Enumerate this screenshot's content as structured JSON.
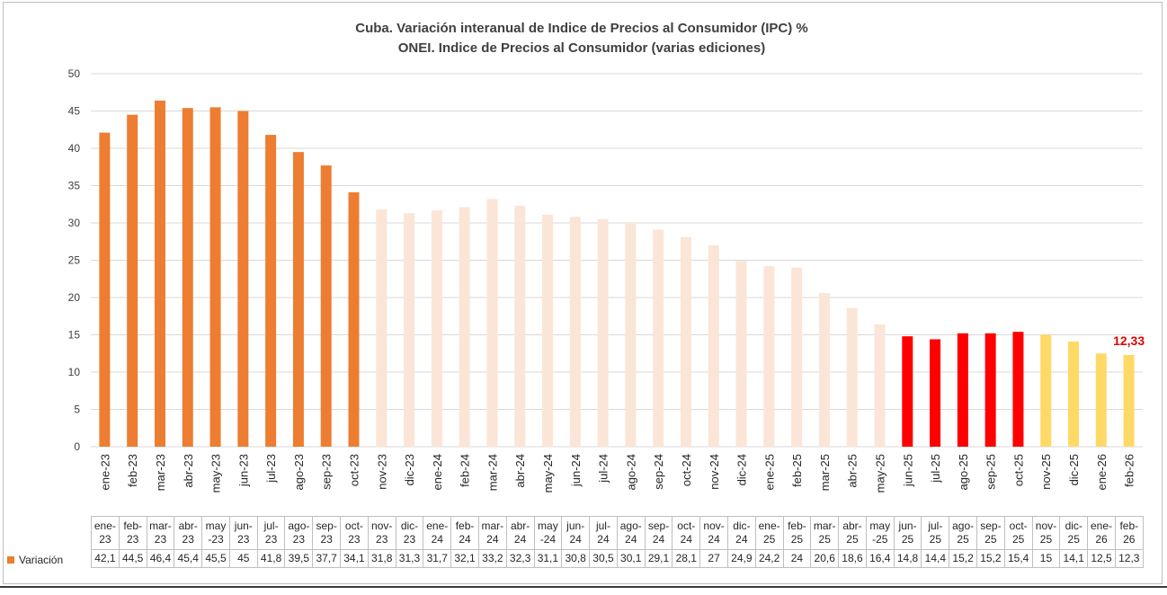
{
  "chart_data": {
    "type": "bar",
    "title": "Cuba. Variación interanual de Indice de Precios al Consumidor (IPC) %",
    "subtitle": "ONEI. Indice de Precios al Consumidor (varias ediciones)",
    "xlabel": "",
    "ylabel": "",
    "ylim": [
      0,
      50
    ],
    "yticks": [
      0,
      5,
      10,
      15,
      20,
      25,
      30,
      35,
      40,
      45,
      50
    ],
    "grid": true,
    "series_name": "Variación",
    "categories": [
      "ene-23",
      "feb-23",
      "mar-23",
      "abr-23",
      "may-23",
      "jun-23",
      "jul-23",
      "ago-23",
      "sep-23",
      "oct-23",
      "nov-23",
      "dic-23",
      "ene-24",
      "feb-24",
      "mar-24",
      "abr-24",
      "may-24",
      "jun-24",
      "jul-24",
      "ago-24",
      "sep-24",
      "oct-24",
      "nov-24",
      "dic-24",
      "ene-25",
      "feb-25",
      "mar-25",
      "abr-25",
      "may-25",
      "jun-25",
      "jul-25",
      "ago-25",
      "sep-25",
      "oct-25",
      "nov-25",
      "dic-25",
      "ene-26",
      "feb-26"
    ],
    "values": [
      42.1,
      44.5,
      46.4,
      45.4,
      45.5,
      45,
      41.8,
      39.5,
      37.7,
      34.1,
      31.8,
      31.3,
      31.7,
      32.1,
      33.2,
      32.3,
      31.1,
      30.8,
      30.5,
      30.1,
      29.1,
      28.1,
      27,
      24.9,
      24.2,
      24,
      20.6,
      18.6,
      16.4,
      14.8,
      14.4,
      15.2,
      15.2,
      15.4,
      15,
      14.1,
      12.5,
      12.3
    ],
    "bar_colors": [
      "#ed7d31",
      "#ed7d31",
      "#ed7d31",
      "#ed7d31",
      "#ed7d31",
      "#ed7d31",
      "#ed7d31",
      "#ed7d31",
      "#ed7d31",
      "#ed7d31",
      "#fbe5d6",
      "#fbe5d6",
      "#fbe5d6",
      "#fbe5d6",
      "#fbe5d6",
      "#fbe5d6",
      "#fbe5d6",
      "#fbe5d6",
      "#fbe5d6",
      "#fbe5d6",
      "#fbe5d6",
      "#fbe5d6",
      "#fbe5d6",
      "#fbe5d6",
      "#fbe5d6",
      "#fbe5d6",
      "#fbe5d6",
      "#fbe5d6",
      "#fbe5d6",
      "#ff0000",
      "#ff0000",
      "#ff0000",
      "#ff0000",
      "#ff0000",
      "#ffd966",
      "#ffd966",
      "#ffd966",
      "#ffd966"
    ],
    "table_header": [
      [
        "ene-",
        "23"
      ],
      [
        "feb-",
        "23"
      ],
      [
        "mar-",
        "23"
      ],
      [
        "abr-",
        "23"
      ],
      [
        "may",
        "-23"
      ],
      [
        "jun-",
        "23"
      ],
      [
        "jul-",
        "23"
      ],
      [
        "ago-",
        "23"
      ],
      [
        "sep-",
        "23"
      ],
      [
        "oct-",
        "23"
      ],
      [
        "nov-",
        "23"
      ],
      [
        "dic-",
        "23"
      ],
      [
        "ene-",
        "24"
      ],
      [
        "feb-",
        "24"
      ],
      [
        "mar-",
        "24"
      ],
      [
        "abr-",
        "24"
      ],
      [
        "may",
        "-24"
      ],
      [
        "jun-",
        "24"
      ],
      [
        "jul-",
        "24"
      ],
      [
        "ago-",
        "24"
      ],
      [
        "sep-",
        "24"
      ],
      [
        "oct-",
        "24"
      ],
      [
        "nov-",
        "24"
      ],
      [
        "dic-",
        "24"
      ],
      [
        "ene-",
        "25"
      ],
      [
        "feb-",
        "25"
      ],
      [
        "mar-",
        "25"
      ],
      [
        "abr-",
        "25"
      ],
      [
        "may",
        "-25"
      ],
      [
        "jun-",
        "25"
      ],
      [
        "jul-",
        "25"
      ],
      [
        "ago-",
        "25"
      ],
      [
        "sep-",
        "25"
      ],
      [
        "oct-",
        "25"
      ],
      [
        "nov-",
        "25"
      ],
      [
        "dic-",
        "25"
      ],
      [
        "ene-",
        "26"
      ],
      [
        "feb-",
        "26"
      ]
    ],
    "table_values": [
      "42,1",
      "44,5",
      "46,4",
      "45,4",
      "45,5",
      "45",
      "41,8",
      "39,5",
      "37,7",
      "34,1",
      "31,8",
      "31,3",
      "31,7",
      "32,1",
      "33,2",
      "32,3",
      "31,1",
      "30,8",
      "30,5",
      "30,1",
      "29,1",
      "28,1",
      "27",
      "24,9",
      "24,2",
      "24",
      "20,6",
      "18,6",
      "16,4",
      "14,8",
      "14,4",
      "15,2",
      "15,2",
      "15,4",
      "15",
      "14,1",
      "12,5",
      "12,3"
    ],
    "annotation": {
      "text": "12,33",
      "category": "feb-26",
      "color": "#e00000"
    },
    "legend_swatch_color": "#ed7d31"
  }
}
